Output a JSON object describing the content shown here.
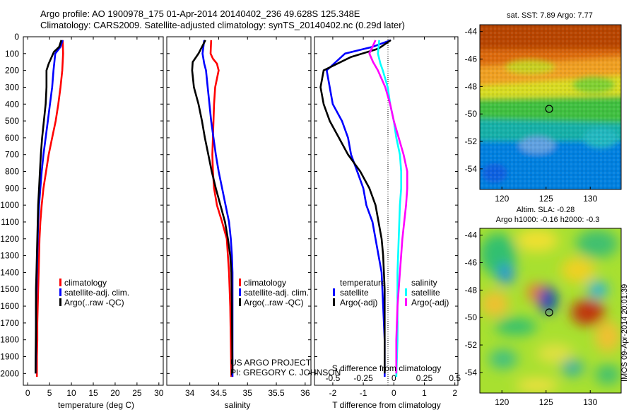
{
  "header": {
    "line1": "Argo profile: AO 1900978_175 01-Apr-2014 20140402_236 49.628S 125.348E",
    "line2": "Climatology: CARS2009. Satellite-adjusted climatology: synTS_20140402.nc (0.29d later)"
  },
  "credits": {
    "project": "US ARGO PROJECT",
    "pi": "PI: GREGORY C. JOHNSON",
    "stamp": "IMOS 09-Apr-2014 20:01:39"
  },
  "colors": {
    "climatology": "#ff0000",
    "satellite": "#0000ff",
    "argo": "#000000",
    "sat_salinity": "#00ffff",
    "argo_salinity": "#ff00ff"
  },
  "chart_data": [
    {
      "type": "line",
      "id": "temperature",
      "xlabel": "temperature (deg C)",
      "xlim": [
        -1,
        31
      ],
      "xticks": [
        0,
        5,
        10,
        15,
        20,
        25,
        30
      ],
      "ylim": [
        0,
        2070
      ],
      "yticks": [
        0,
        100,
        200,
        300,
        400,
        500,
        600,
        700,
        800,
        900,
        1000,
        1100,
        1200,
        1300,
        1400,
        1500,
        1600,
        1700,
        1800,
        1900,
        2000
      ],
      "yreversed": true,
      "legend": [
        "climatology",
        "satellite-adj. clim.",
        "Argo(..raw -QC)"
      ],
      "series": [
        {
          "name": "climatology",
          "color": "#ff0000",
          "x": [
            8.0,
            8.1,
            7.9,
            7.5,
            7.0,
            6.4,
            5.6,
            4.8,
            4.2,
            3.6,
            3.2,
            2.9,
            2.7,
            2.6,
            2.5,
            2.4,
            2.3,
            2.2,
            2.2,
            2.1,
            2.1
          ],
          "y": [
            20,
            100,
            200,
            300,
            400,
            500,
            600,
            700,
            800,
            900,
            1000,
            1100,
            1200,
            1300,
            1400,
            1500,
            1600,
            1700,
            1800,
            1900,
            2020
          ]
        },
        {
          "name": "satellite-adj. clim.",
          "color": "#0000ff",
          "x": [
            8.0,
            7.5,
            6.3,
            5.9,
            5.6,
            5.1,
            4.6,
            4.1,
            3.6,
            3.2,
            2.9,
            2.6,
            2.4,
            2.3,
            2.2,
            2.1,
            2.0,
            1.9,
            1.9,
            1.8
          ],
          "y": [
            20,
            60,
            100,
            200,
            300,
            400,
            500,
            600,
            700,
            800,
            900,
            1000,
            1100,
            1200,
            1300,
            1400,
            1500,
            1600,
            1800,
            2000
          ]
        },
        {
          "name": "Argo(..raw -QC)",
          "color": "#000000",
          "x": [
            7.7,
            7.2,
            6.0,
            4.8,
            4.3,
            4.3,
            4.1,
            3.7,
            3.3,
            3.0,
            2.8,
            2.6,
            2.4,
            2.3,
            2.2,
            2.1,
            2.0,
            1.9,
            1.9,
            1.8
          ],
          "y": [
            20,
            60,
            90,
            160,
            200,
            300,
            400,
            500,
            600,
            700,
            800,
            900,
            1000,
            1100,
            1200,
            1300,
            1400,
            1500,
            1700,
            2000
          ]
        }
      ]
    },
    {
      "type": "line",
      "id": "salinity",
      "xlabel": "salinity",
      "xlim": [
        33.6,
        36.1
      ],
      "xticks": [
        34,
        34.5,
        35,
        35.5,
        36
      ],
      "xticklabels": [
        "34",
        "34.5",
        "35",
        "35.5",
        "36"
      ],
      "ylim": [
        0,
        2070
      ],
      "yreversed": true,
      "legend": [
        "climatology",
        "satellite-adj. clim.",
        "Argo(..raw -QC)"
      ],
      "series": [
        {
          "name": "climatology",
          "color": "#ff0000",
          "x": [
            34.37,
            34.36,
            34.4,
            34.47,
            34.5,
            34.44,
            34.42,
            34.41,
            34.4,
            34.39,
            34.4,
            34.42,
            34.47,
            34.56,
            34.64,
            34.68,
            34.7,
            34.71,
            34.72
          ],
          "y": [
            20,
            100,
            130,
            160,
            200,
            300,
            400,
            500,
            600,
            700,
            800,
            900,
            1000,
            1100,
            1200,
            1400,
            1600,
            1800,
            2020
          ]
        },
        {
          "name": "satellite-adj. clim.",
          "color": "#0000ff",
          "x": [
            34.25,
            34.22,
            34.25,
            34.28,
            34.31,
            34.34,
            34.37,
            34.41,
            34.45,
            34.5,
            34.56,
            34.62,
            34.68,
            34.71,
            34.73,
            34.74,
            34.74,
            34.74
          ],
          "y": [
            20,
            100,
            160,
            200,
            300,
            400,
            500,
            600,
            700,
            800,
            900,
            1000,
            1100,
            1200,
            1300,
            1400,
            1600,
            2020
          ]
        },
        {
          "name": "Argo(..raw -QC)",
          "color": "#000000",
          "x": [
            34.27,
            34.15,
            34.05,
            34.04,
            34.07,
            34.15,
            34.21,
            34.26,
            34.32,
            34.38,
            34.45,
            34.53,
            34.61,
            34.66,
            34.7,
            34.72,
            34.73,
            34.74
          ],
          "y": [
            20,
            100,
            150,
            200,
            300,
            400,
            500,
            600,
            700,
            800,
            900,
            1000,
            1100,
            1200,
            1300,
            1400,
            1600,
            2000
          ]
        }
      ]
    },
    {
      "type": "line",
      "id": "differences",
      "xlabel": "T difference from climatology",
      "xlabel_top": "S difference from climatology",
      "xlim": [
        -2.6,
        2.1
      ],
      "xticks": [
        -2,
        -1,
        0,
        1,
        2
      ],
      "sticks": [
        -0.5,
        -0.25,
        0,
        0.25,
        0.5
      ],
      "sticklabels": [
        "-0.5",
        "-0.25",
        "0",
        "0.25",
        "0.5"
      ],
      "ylim": [
        0,
        2070
      ],
      "yreversed": true,
      "legend_temperature": {
        "title": "temperature",
        "items": [
          "satellite",
          "Argo(-adj)"
        ]
      },
      "legend_salinity": {
        "title": "salinity",
        "items": [
          "satellite",
          "Argo(-adj)"
        ]
      },
      "series": [
        {
          "name": "temperature satellite",
          "color": "#0000ff",
          "x": [
            -0.1,
            -0.7,
            -1.6,
            -2.2,
            -2.1,
            -2.0,
            -1.7,
            -1.5,
            -1.4,
            -1.2,
            -1.0,
            -0.9,
            -0.7,
            -0.6,
            -0.5,
            -0.4,
            -0.35,
            -0.3,
            -0.3
          ],
          "y": [
            20,
            60,
            100,
            200,
            300,
            400,
            500,
            600,
            700,
            800,
            900,
            1000,
            1100,
            1200,
            1300,
            1400,
            1600,
            1800,
            2020
          ]
        },
        {
          "name": "temperature Argo(-adj)",
          "color": "#000000",
          "x": [
            -0.1,
            -0.5,
            -1.4,
            -2.3,
            -2.4,
            -2.3,
            -2.1,
            -1.8,
            -1.5,
            -1.1,
            -0.8,
            -0.6,
            -0.5,
            -0.4,
            -0.35,
            -0.3,
            -0.3,
            -0.3
          ],
          "y": [
            20,
            70,
            120,
            200,
            300,
            400,
            500,
            600,
            700,
            800,
            900,
            1000,
            1100,
            1200,
            1300,
            1500,
            1700,
            2000
          ]
        },
        {
          "name": "salinity satellite",
          "color": "#00ffff",
          "x": [
            -0.12,
            -0.13,
            -0.11,
            -0.09,
            -0.05,
            -0.03,
            0.0,
            0.02,
            0.05,
            0.06,
            0.06,
            0.05,
            0.04,
            0.03,
            0.03,
            0.03,
            0.02
          ],
          "y": [
            20,
            100,
            160,
            200,
            300,
            400,
            500,
            600,
            700,
            800,
            900,
            1000,
            1200,
            1400,
            1600,
            1800,
            2020
          ]
        },
        {
          "name": "salinity Argo(-adj)",
          "color": "#ff00ff",
          "x": [
            -0.15,
            -0.2,
            -0.17,
            -0.13,
            -0.07,
            -0.03,
            0.0,
            0.04,
            0.08,
            0.11,
            0.11,
            0.1,
            0.07,
            0.05,
            0.03,
            0.02,
            0.02
          ],
          "y": [
            20,
            100,
            150,
            200,
            300,
            400,
            500,
            600,
            700,
            800,
            900,
            1000,
            1200,
            1400,
            1600,
            1800,
            2000
          ]
        }
      ]
    },
    {
      "type": "heatmap",
      "id": "sst-map",
      "title": "sat. SST: 7.89 Argo: 7.77",
      "xlim": [
        117.5,
        133.5
      ],
      "ylim": [
        -55.5,
        -43.5
      ],
      "xticks": [
        120,
        125,
        130
      ],
      "yticks": [
        -44,
        -46,
        -48,
        -50,
        -52,
        -54
      ],
      "marker": {
        "lon": 125.35,
        "lat": -49.63
      }
    },
    {
      "type": "heatmap",
      "id": "sla-map",
      "title": "Altim. SLA: -0.28",
      "subtitle": "Argo h1000: -0.16 h2000: -0.3",
      "xlim": [
        117.5,
        133.5
      ],
      "ylim": [
        -55.5,
        -43.5
      ],
      "xticks": [
        120,
        125,
        130
      ],
      "yticks": [
        -44,
        -46,
        -48,
        -50,
        -52,
        -54
      ],
      "marker": {
        "lon": 125.35,
        "lat": -49.63
      }
    }
  ]
}
